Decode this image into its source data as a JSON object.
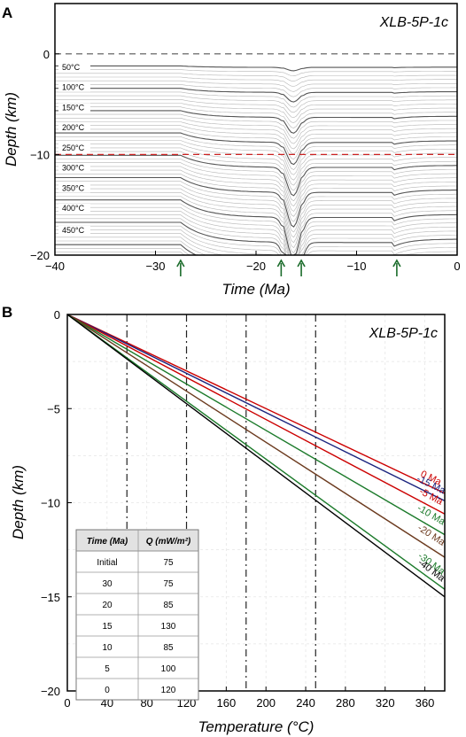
{
  "chart_data": [
    {
      "panel": "A",
      "type": "line",
      "title": "XLB-5P-1c",
      "xlabel": "Time (Ma)",
      "ylabel": "Depth (km)",
      "xlim": [
        -40,
        0
      ],
      "ylim": [
        -20,
        5
      ],
      "xticks": [
        -40,
        -30,
        -20,
        -10,
        0
      ],
      "yticks": [
        0,
        -10,
        -20
      ],
      "xtick_labels": [
        "−40",
        "−30",
        "−20",
        "−10",
        "0"
      ],
      "ytick_labels": [
        "0",
        "−10",
        "−20"
      ],
      "isotherm_labels": [
        "50°C",
        "100°C",
        "150°C",
        "200°C",
        "250°C",
        "300°C",
        "350°C",
        "400°C",
        "450°C"
      ],
      "reference_lines": [
        {
          "depth": 0,
          "style": "dashed",
          "color": "#555555"
        },
        {
          "depth": -10,
          "style": "dashed",
          "color": "#cc2222"
        }
      ],
      "events_ma": [
        -27.5,
        -17.5,
        -15.5,
        -6
      ],
      "event_color": "#1a6b2a"
    },
    {
      "panel": "B",
      "type": "line",
      "title": "XLB-5P-1c",
      "xlabel": "Temperature (°C)",
      "ylabel": "Depth (km)",
      "xlim": [
        0,
        380
      ],
      "ylim": [
        -20,
        0
      ],
      "xticks": [
        0,
        40,
        80,
        120,
        160,
        200,
        240,
        280,
        320,
        360
      ],
      "yticks": [
        0,
        -5,
        -10,
        -15,
        -20
      ],
      "xtick_labels": [
        "0",
        "40",
        "80",
        "120",
        "160",
        "200",
        "240",
        "280",
        "320",
        "360"
      ],
      "ytick_labels": [
        "0",
        "−5",
        "−10",
        "−15",
        "−20"
      ],
      "vertical_lines": [
        60,
        120,
        180,
        250
      ],
      "series": [
        {
          "name": "0 Ma",
          "color": "#cc0000",
          "x": [
            0,
            380
          ],
          "y": [
            0,
            -9.5
          ]
        },
        {
          "name": "-15 Ma",
          "color": "#1a237e",
          "x": [
            0,
            380
          ],
          "y": [
            0,
            -9.9
          ]
        },
        {
          "name": "-5 Ma",
          "color": "#cc0000",
          "x": [
            0,
            380
          ],
          "y": [
            0,
            -10.6
          ]
        },
        {
          "name": "-10 Ma",
          "color": "#1b7a2a",
          "x": [
            0,
            380
          ],
          "y": [
            0,
            -11.7
          ]
        },
        {
          "name": "-20 Ma",
          "color": "#6b3a1e",
          "x": [
            0,
            380
          ],
          "y": [
            0,
            -12.9
          ]
        },
        {
          "name": "-30 Ma",
          "color": "#1b7a2a",
          "x": [
            0,
            380
          ],
          "y": [
            0,
            -14.6
          ]
        },
        {
          "name": "-40 Ma",
          "color": "#000000",
          "x": [
            0,
            380
          ],
          "y": [
            0,
            -15.0
          ]
        }
      ],
      "table": {
        "headers": [
          "Time (Ma)",
          "Q (mW/m²)"
        ],
        "rows": [
          [
            "Initial",
            "75"
          ],
          [
            "30",
            "75"
          ],
          [
            "20",
            "85"
          ],
          [
            "15",
            "130"
          ],
          [
            "10",
            "85"
          ],
          [
            "5",
            "100"
          ],
          [
            "0",
            "120"
          ]
        ]
      }
    }
  ]
}
